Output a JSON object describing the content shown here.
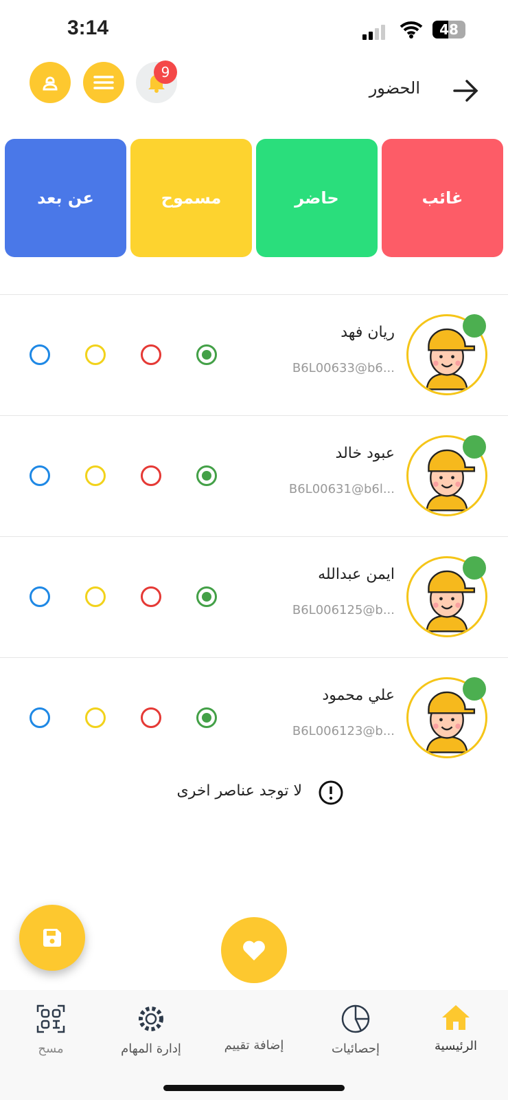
{
  "status_bar": {
    "time": "3:14",
    "battery": "48"
  },
  "header": {
    "title": "الحضور",
    "notification_count": "9"
  },
  "status_cards": [
    {
      "label": "غائب",
      "color": "#fd5c67"
    },
    {
      "label": "حاضر",
      "color": "#2ade7c"
    },
    {
      "label": "مسموح",
      "color": "#fdd32f"
    },
    {
      "label": "عن بعد",
      "color": "#4a78e8"
    }
  ],
  "students": [
    {
      "name": "ريان فهد",
      "email": "B6L00633@b6...",
      "selected": "present"
    },
    {
      "name": "عبود خالد",
      "email": "B6L00631@b6l...",
      "selected": "present"
    },
    {
      "name": "ايمن عبدالله",
      "email": "B6L006125@b...",
      "selected": "present"
    },
    {
      "name": "علي  محمود",
      "email": "B6L006123@b...",
      "selected": "present"
    }
  ],
  "empty_message": "لا توجد عناصر اخرى",
  "nav": {
    "home": "الرئيسية",
    "stats": "إحصائيات",
    "add_rating": "إضافة تقييم",
    "tasks": "إدارة المهام",
    "scan": "مسح"
  },
  "colors": {
    "accent": "#fdc82f",
    "present": "#43a047",
    "absent": "#e53935",
    "permitted": "#f2d21b",
    "remote": "#1e88e5"
  }
}
